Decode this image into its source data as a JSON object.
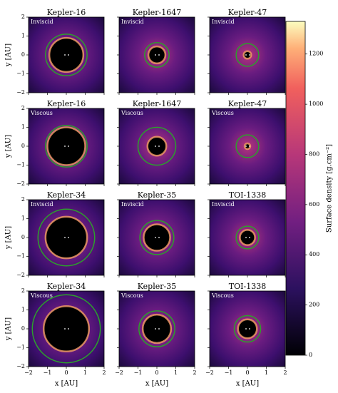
{
  "chart_data": {
    "type": "image-grid",
    "panels": [
      {
        "title": "Kepler-16",
        "label": "Inviscid",
        "circle_radius": 1.1,
        "cavity_radius": 0.9
      },
      {
        "title": "Kepler-1647",
        "label": "Inviscid",
        "circle_radius": 0.65,
        "cavity_radius": 0.45
      },
      {
        "title": "Kepler-47",
        "label": "Inviscid",
        "circle_radius": 0.6,
        "cavity_radius": 0.2
      },
      {
        "title": "Kepler-16",
        "label": "Viscous",
        "circle_radius": 1.1,
        "cavity_radius": 1.0
      },
      {
        "title": "Kepler-1647",
        "label": "Viscous",
        "circle_radius": 1.0,
        "cavity_radius": 0.5
      },
      {
        "title": "Kepler-47",
        "label": "Viscous",
        "circle_radius": 0.6,
        "cavity_radius": 0.15
      },
      {
        "title": "Kepler-34",
        "label": "Inviscid",
        "circle_radius": 1.5,
        "cavity_radius": 1.1
      },
      {
        "title": "Kepler-35",
        "label": "Inviscid",
        "circle_radius": 0.9,
        "cavity_radius": 0.7
      },
      {
        "title": "TOI-1338",
        "label": "Inviscid",
        "circle_radius": 0.6,
        "cavity_radius": 0.4
      },
      {
        "title": "Kepler-34",
        "label": "Viscous",
        "circle_radius": 1.8,
        "cavity_radius": 1.2
      },
      {
        "title": "Kepler-35",
        "label": "Viscous",
        "circle_radius": 0.95,
        "cavity_radius": 0.75
      },
      {
        "title": "TOI-1338",
        "label": "Viscous",
        "circle_radius": 0.7,
        "cavity_radius": 0.5
      }
    ],
    "xlabel": "x [AU]",
    "ylabel": "y [AU]",
    "xlim": [
      -2,
      2
    ],
    "ylim": [
      -2,
      2
    ],
    "xticks": [
      {
        "value": -2,
        "label": "−2"
      },
      {
        "value": -1,
        "label": "−1"
      },
      0,
      1,
      2
    ],
    "yticks": [
      {
        "value": -2,
        "label": "−2"
      },
      {
        "value": -1,
        "label": "−1"
      },
      0,
      1,
      2
    ],
    "circle_color": "#2ca02c",
    "colorbar": {
      "label": "Surface density [g.cm⁻²]",
      "lim": [
        0,
        1330
      ],
      "ticks": [
        0,
        200,
        400,
        600,
        800,
        1000,
        1200
      ]
    }
  }
}
